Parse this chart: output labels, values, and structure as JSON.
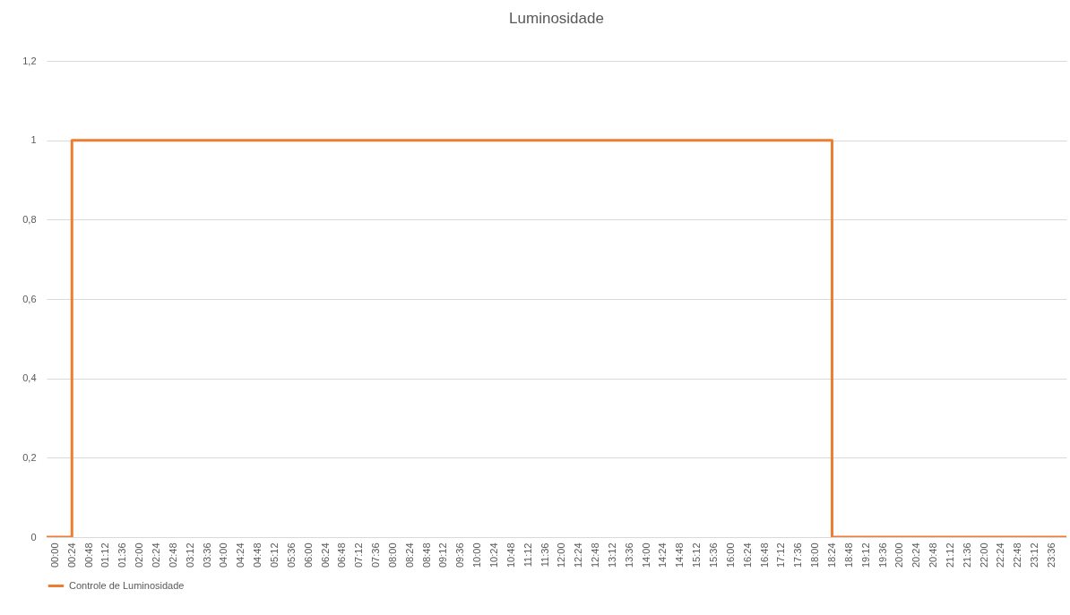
{
  "chart_data": {
    "type": "step",
    "title": "Luminosidade",
    "x": [
      -0.2,
      0.4,
      18.4,
      23.95
    ],
    "series": [
      {
        "name": "Controle de Luminosidade",
        "color": "#ed7d31",
        "values": [
          0,
          1,
          0,
          0
        ]
      }
    ],
    "xlim": [
      -0.2,
      23.95
    ],
    "xticks": [
      {
        "value": 0,
        "label": "00:00"
      },
      {
        "value": 0.4,
        "label": "00:24"
      },
      {
        "value": 0.8,
        "label": "00:48"
      },
      {
        "value": 1.2,
        "label": "01:12"
      },
      {
        "value": 1.6,
        "label": "01:36"
      },
      {
        "value": 2,
        "label": "02:00"
      },
      {
        "value": 2.4,
        "label": "02:24"
      },
      {
        "value": 2.8,
        "label": "02:48"
      },
      {
        "value": 3.2,
        "label": "03:12"
      },
      {
        "value": 3.6,
        "label": "03:36"
      },
      {
        "value": 4,
        "label": "04:00"
      },
      {
        "value": 4.4,
        "label": "04:24"
      },
      {
        "value": 4.8,
        "label": "04:48"
      },
      {
        "value": 5.2,
        "label": "05:12"
      },
      {
        "value": 5.6,
        "label": "05:36"
      },
      {
        "value": 6,
        "label": "06:00"
      },
      {
        "value": 6.4,
        "label": "06:24"
      },
      {
        "value": 6.8,
        "label": "06:48"
      },
      {
        "value": 7.2,
        "label": "07:12"
      },
      {
        "value": 7.6,
        "label": "07:36"
      },
      {
        "value": 8,
        "label": "08:00"
      },
      {
        "value": 8.4,
        "label": "08:24"
      },
      {
        "value": 8.8,
        "label": "08:48"
      },
      {
        "value": 9.2,
        "label": "09:12"
      },
      {
        "value": 9.6,
        "label": "09:36"
      },
      {
        "value": 10,
        "label": "10:00"
      },
      {
        "value": 10.4,
        "label": "10:24"
      },
      {
        "value": 10.8,
        "label": "10:48"
      },
      {
        "value": 11.2,
        "label": "11:12"
      },
      {
        "value": 11.6,
        "label": "11:36"
      },
      {
        "value": 12,
        "label": "12:00"
      },
      {
        "value": 12.4,
        "label": "12:24"
      },
      {
        "value": 12.8,
        "label": "12:48"
      },
      {
        "value": 13.2,
        "label": "13:12"
      },
      {
        "value": 13.6,
        "label": "13:36"
      },
      {
        "value": 14,
        "label": "14:00"
      },
      {
        "value": 14.4,
        "label": "14:24"
      },
      {
        "value": 14.8,
        "label": "14:48"
      },
      {
        "value": 15.2,
        "label": "15:12"
      },
      {
        "value": 15.6,
        "label": "15:36"
      },
      {
        "value": 16,
        "label": "16:00"
      },
      {
        "value": 16.4,
        "label": "16:24"
      },
      {
        "value": 16.8,
        "label": "16:48"
      },
      {
        "value": 17.2,
        "label": "17:12"
      },
      {
        "value": 17.6,
        "label": "17:36"
      },
      {
        "value": 18,
        "label": "18:00"
      },
      {
        "value": 18.4,
        "label": "18:24"
      },
      {
        "value": 18.8,
        "label": "18:48"
      },
      {
        "value": 19.2,
        "label": "19:12"
      },
      {
        "value": 19.6,
        "label": "19:36"
      },
      {
        "value": 20,
        "label": "20:00"
      },
      {
        "value": 20.4,
        "label": "20:24"
      },
      {
        "value": 20.8,
        "label": "20:48"
      },
      {
        "value": 21.2,
        "label": "21:12"
      },
      {
        "value": 21.6,
        "label": "21:36"
      },
      {
        "value": 22,
        "label": "22:00"
      },
      {
        "value": 22.4,
        "label": "22:24"
      },
      {
        "value": 22.8,
        "label": "22:48"
      },
      {
        "value": 23.2,
        "label": "23:12"
      },
      {
        "value": 23.6,
        "label": "23:36"
      }
    ],
    "ylim": [
      0,
      1.2
    ],
    "yticks": [
      0,
      {
        "value": 0.2,
        "label": "0,2"
      },
      {
        "value": 0.4,
        "label": "0,4"
      },
      {
        "value": 0.6,
        "label": "0,6"
      },
      {
        "value": 0.8,
        "label": "0,8"
      },
      1,
      {
        "value": 1.2,
        "label": "1,2"
      }
    ],
    "grid": "y",
    "legend": "bottom",
    "line_style": "solid"
  }
}
